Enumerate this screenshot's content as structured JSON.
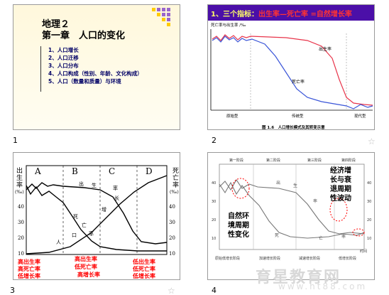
{
  "slide1": {
    "number": "1",
    "title": "地理２",
    "subtitle": "第一章　人口的变化",
    "items": [
      "1、人口增长",
      "2、人口迁移",
      "3、人口分布",
      "4、人口构成（性别、年龄、文化构成）",
      "5、人口（数量和质量）与环境"
    ]
  },
  "slide2": {
    "number": "2",
    "header_prefix": "1、三个指标：",
    "header_formula": "出生率—死亡率 =自然增长率",
    "ylabel": "死亡率与出生率 /‰",
    "birth_label": "出生率",
    "death_label": "死亡率",
    "stages": [
      "原始型",
      "传统型",
      "现代型"
    ],
    "caption": "图 1.6　人口增长模式及其转变示意"
  },
  "slide3": {
    "number": "3",
    "left_axis": [
      "出",
      "生",
      "率",
      "(‰)"
    ],
    "right_axis": [
      "死",
      "亡",
      "率",
      "(‰)"
    ],
    "phases": [
      "A",
      "B",
      "C",
      "D"
    ],
    "ticks_left": [
      "40",
      "30",
      "20",
      "10"
    ],
    "ticks_right": [
      "40",
      "30",
      "20",
      "10"
    ],
    "curve_labels": [
      "出",
      "生",
      "率",
      "死",
      "亡",
      "率",
      "人",
      "口",
      "增",
      "长"
    ],
    "stage_a": [
      "高出生率",
      "高死亡率",
      "低增长率"
    ],
    "stage_bc": [
      "高出生率",
      "低死亡率",
      "高增长率"
    ],
    "stage_d": [
      "低出生率",
      "低死亡率",
      "低增长率"
    ]
  },
  "slide4": {
    "number": "4",
    "stage_labels": [
      "第一阶段",
      "第二阶段",
      "第三阶段",
      "第四阶段"
    ],
    "bottom_labels": [
      "原始低增长阶段",
      "加速增长阶段",
      "减速增长阶段",
      "低增长阶段"
    ],
    "ticks_left": [
      "40",
      "30",
      "20",
      "10"
    ],
    "ticks_right": [
      "40",
      "30",
      "20",
      "10"
    ],
    "time_label": "时间",
    "left_note": [
      "自然环",
      "境周期",
      "性变化"
    ],
    "right_note": [
      "经济增",
      "长与衰",
      "退周期",
      "性波动"
    ],
    "curve_labels": [
      "出",
      "生",
      "率",
      "死",
      "亡",
      "率"
    ]
  },
  "watermark": {
    "text": "育星教育网",
    "url": "www.ht88.com"
  },
  "colors": {
    "header_bar": "#4b0fa8",
    "header_text": "#ffff66",
    "formula": "#ff3333",
    "birth": "#e8344a",
    "death": "#3a55d8",
    "red_text": "#ff0000"
  }
}
